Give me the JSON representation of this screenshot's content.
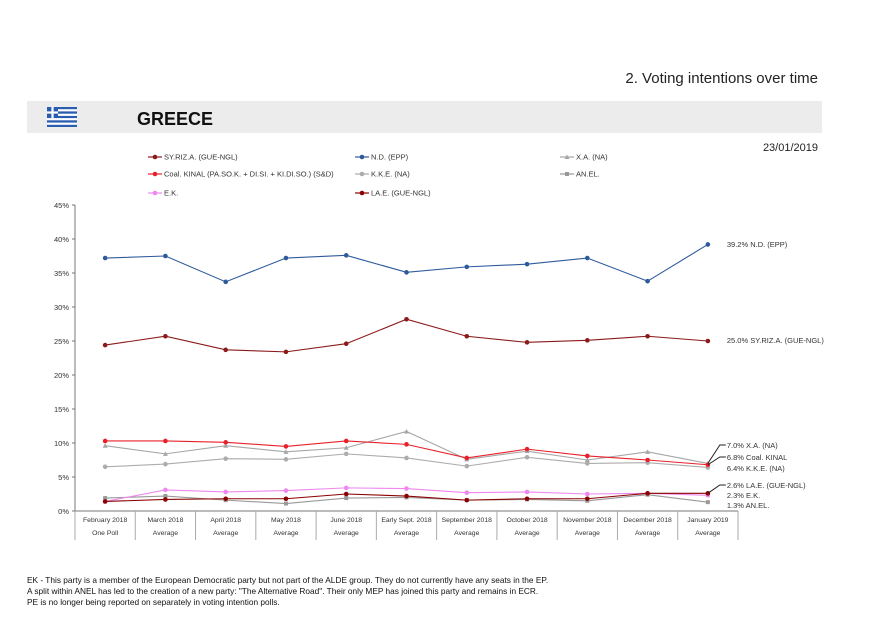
{
  "section_title": "2. Voting intentions over time",
  "country": "GREECE",
  "date": "23/01/2019",
  "footnotes": [
    "EK - This party is a member of the European Democratic party but not part of the ALDE group. They do not currently have any seats in the EP.",
    "A split within ANEL has led to the creation of a new party: \"The Alternative Road\". Their only MEP has joined this party and remains in ECR.",
    "PE is no longer being reported on separately in voting intention polls."
  ],
  "chart_data": {
    "type": "line",
    "ylim": [
      0,
      45
    ],
    "yticks": [
      "0%",
      "5%",
      "10%",
      "15%",
      "20%",
      "25%",
      "30%",
      "35%",
      "40%",
      "45%"
    ],
    "grid": false,
    "legend_placement": "top",
    "categories": [
      "February 2018",
      "March 2018",
      "April 2018",
      "May 2018",
      "June 2018",
      "Early Sept. 2018",
      "September 2018",
      "October 2018",
      "November 2018",
      "December 2018",
      "January 2019"
    ],
    "subcategories": [
      "One Poll",
      "Average",
      "Average",
      "Average",
      "Average",
      "Average",
      "Average",
      "Average",
      "Average",
      "Average",
      "Average"
    ],
    "series": [
      {
        "name": "SY.RIZ.A. (GUE-NGL)",
        "color": "#8b1a1a",
        "marker": "circle",
        "values": [
          24.4,
          25.7,
          23.7,
          23.4,
          24.6,
          28.2,
          25.7,
          24.8,
          25.1,
          25.7,
          25.0
        ],
        "end_label": "25.0% SY.RIZ.A. (GUE-NGL)"
      },
      {
        "name": "N.D. (EPP)",
        "color": "#2e5a9c",
        "marker": "circle",
        "values": [
          37.2,
          37.5,
          33.7,
          37.2,
          37.6,
          35.1,
          35.9,
          36.3,
          37.2,
          33.8,
          39.2
        ],
        "end_label": "39.2% N.D. (EPP)"
      },
      {
        "name": "X.A. (NA)",
        "color": "#a6a6a6",
        "marker": "triangle",
        "values": [
          9.6,
          8.4,
          9.6,
          8.7,
          9.3,
          11.7,
          7.6,
          8.8,
          7.5,
          8.7,
          7.0
        ],
        "end_label": "7.0% X.A. (NA)"
      },
      {
        "name": "Coal. KINAL (PA.SO.K. + DI.SI. + KI.DI.SO.) (S&D)",
        "color": "#e8202a",
        "marker": "circle",
        "values": [
          10.3,
          10.3,
          10.1,
          9.5,
          10.3,
          9.8,
          7.8,
          9.1,
          8.1,
          7.5,
          6.8
        ],
        "end_label": "6.8% Coal. KINAL"
      },
      {
        "name": "K.K.E. (NA)",
        "color": "#acacac",
        "marker": "circle",
        "values": [
          6.5,
          6.9,
          7.7,
          7.6,
          8.4,
          7.8,
          6.6,
          7.9,
          7.0,
          7.1,
          6.4
        ],
        "end_label": "6.4% K.K.E. (NA)"
      },
      {
        "name": "AN.EL.",
        "color": "#999999",
        "marker": "square",
        "values": [
          1.9,
          2.2,
          1.6,
          1.1,
          1.9,
          2.0,
          1.6,
          1.7,
          1.5,
          2.4,
          1.3
        ],
        "end_label": "1.3% AN.EL."
      },
      {
        "name": "E.K.",
        "color": "#ee88ee",
        "marker": "circle",
        "values": [
          1.4,
          3.1,
          2.8,
          3.0,
          3.4,
          3.3,
          2.7,
          2.8,
          2.5,
          2.6,
          2.3
        ],
        "end_label": "2.3% E.K."
      },
      {
        "name": "LA.E. (GUE-NGL)",
        "color": "#8b0000",
        "marker": "circle",
        "values": [
          1.4,
          1.7,
          1.8,
          1.8,
          2.5,
          2.2,
          1.6,
          1.8,
          1.8,
          2.6,
          2.6
        ],
        "end_label": "2.6% LA.E. (GUE-NGL)"
      }
    ]
  }
}
